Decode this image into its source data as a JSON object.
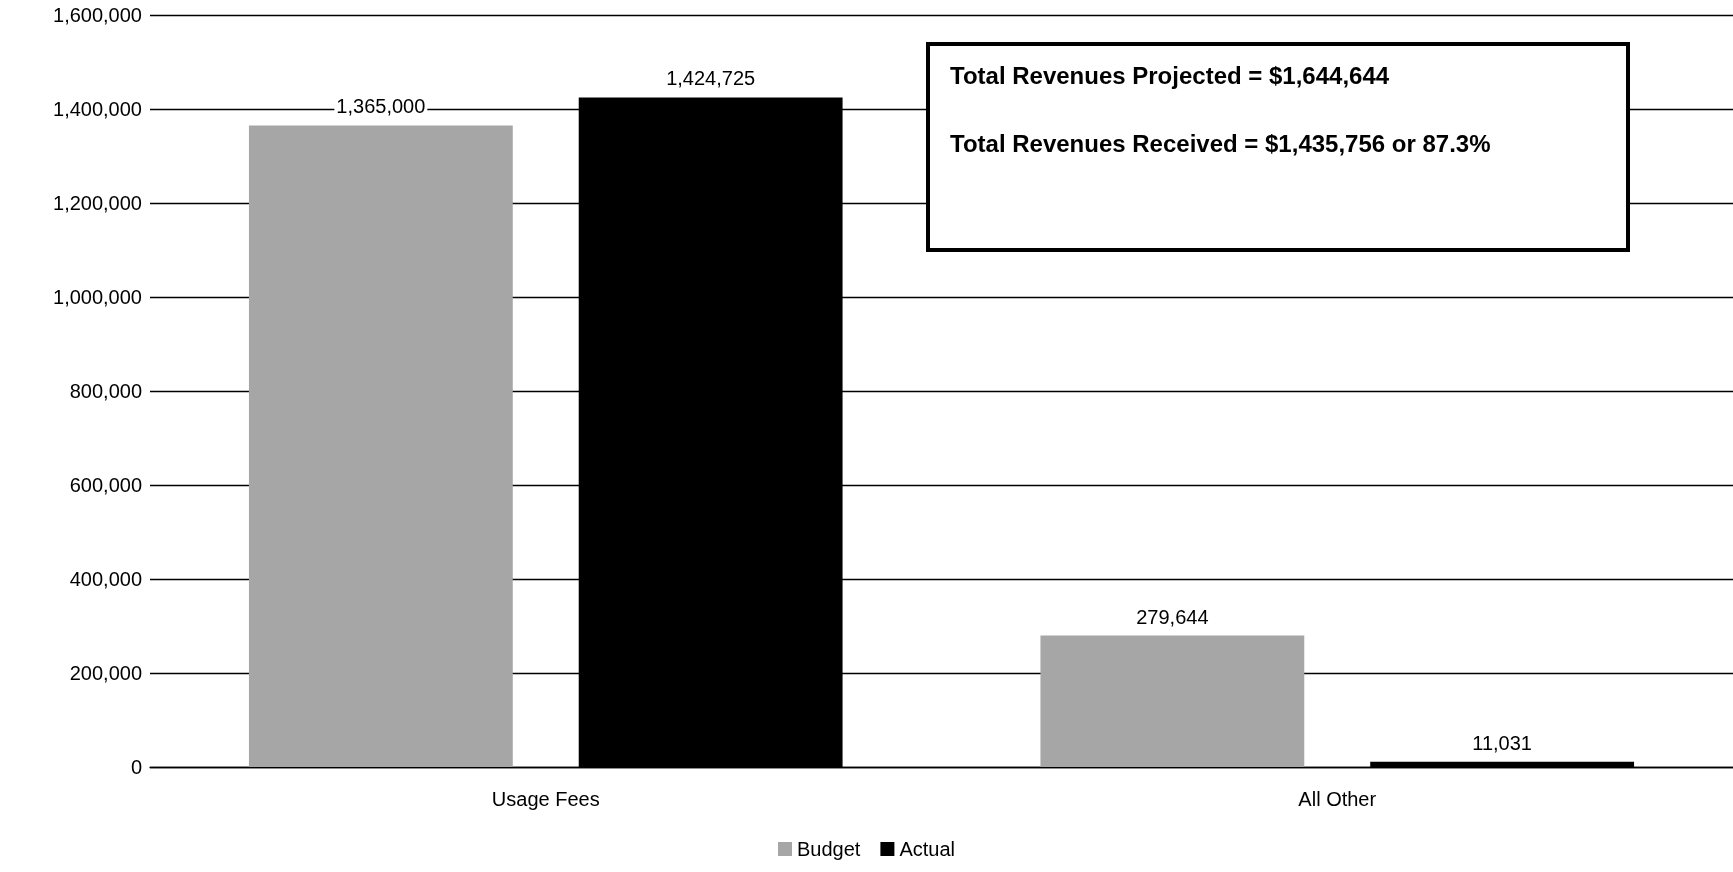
{
  "chart_data": {
    "type": "bar",
    "categories": [
      "Usage Fees",
      "All Other"
    ],
    "series": [
      {
        "name": "Budget",
        "color": "#a6a6a6",
        "values": [
          1365000,
          279644
        ],
        "value_labels": [
          "1,365,000",
          "279,644"
        ]
      },
      {
        "name": "Actual",
        "color": "#000000",
        "values": [
          1424725,
          11031
        ],
        "value_labels": [
          "1,424,725",
          "11,031"
        ]
      }
    ],
    "ylim": [
      0,
      1600000
    ],
    "yticks": [
      {
        "value": 0,
        "label": "0"
      },
      {
        "value": 200000,
        "label": "200,000"
      },
      {
        "value": 400000,
        "label": "400,000"
      },
      {
        "value": 600000,
        "label": "600,000"
      },
      {
        "value": 800000,
        "label": "800,000"
      },
      {
        "value": 1000000,
        "label": "1,000,000"
      },
      {
        "value": 1200000,
        "label": "1,200,000"
      },
      {
        "value": 1400000,
        "label": "1,400,000"
      },
      {
        "value": 1600000,
        "label": "1,600,000"
      }
    ],
    "grid": "y",
    "legend": "bottom",
    "annotations": [
      "Total Revenues Projected = $1,644,644",
      "Total Revenues Received = $1,435,756 or 87.3%"
    ]
  }
}
